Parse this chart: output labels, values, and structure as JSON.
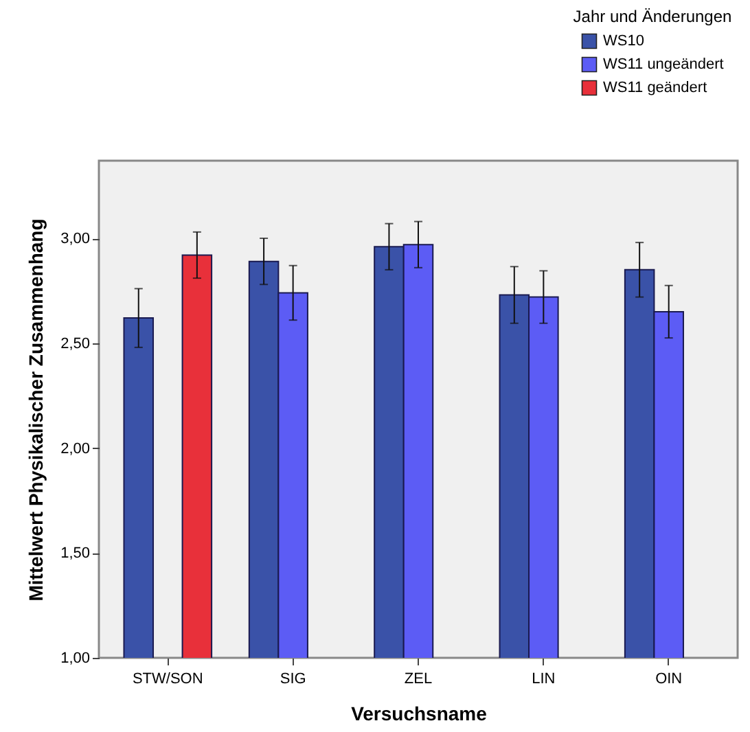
{
  "chart_data": {
    "type": "bar",
    "xlabel": "Versuchsname",
    "ylabel": "Mittelwert Physikalischer Zusammenhang",
    "legend_title": "Jahr und Änderungen",
    "legend": "top right",
    "categories": [
      "STW/SON",
      "SIG",
      "ZEL",
      "LIN",
      "OIN"
    ],
    "series": [
      {
        "name": "WS10",
        "color": "#3a52a8",
        "values": [
          2.62,
          2.89,
          2.96,
          2.73,
          2.85
        ],
        "errors": [
          0.14,
          0.11,
          0.11,
          0.135,
          0.13
        ]
      },
      {
        "name": "WS11 ungeändert",
        "color": "#5c5cf5",
        "values": [
          null,
          2.74,
          2.97,
          2.72,
          2.65
        ],
        "errors": [
          null,
          0.13,
          0.11,
          0.125,
          0.125
        ]
      },
      {
        "name": "WS11 geändert",
        "color": "#e8303a",
        "values": [
          2.92,
          null,
          null,
          null,
          null
        ],
        "errors": [
          0.11,
          null,
          null,
          null,
          null
        ]
      }
    ],
    "ylim": [
      1,
      3.37
    ],
    "yticks": [
      {
        "value": 1,
        "label": "1,00"
      },
      {
        "value": 1.5,
        "label": "1,50"
      },
      {
        "value": 2,
        "label": "2,00"
      },
      {
        "value": 2.5,
        "label": "2,50"
      },
      {
        "value": 3,
        "label": "3,00"
      }
    ],
    "grid": false
  }
}
